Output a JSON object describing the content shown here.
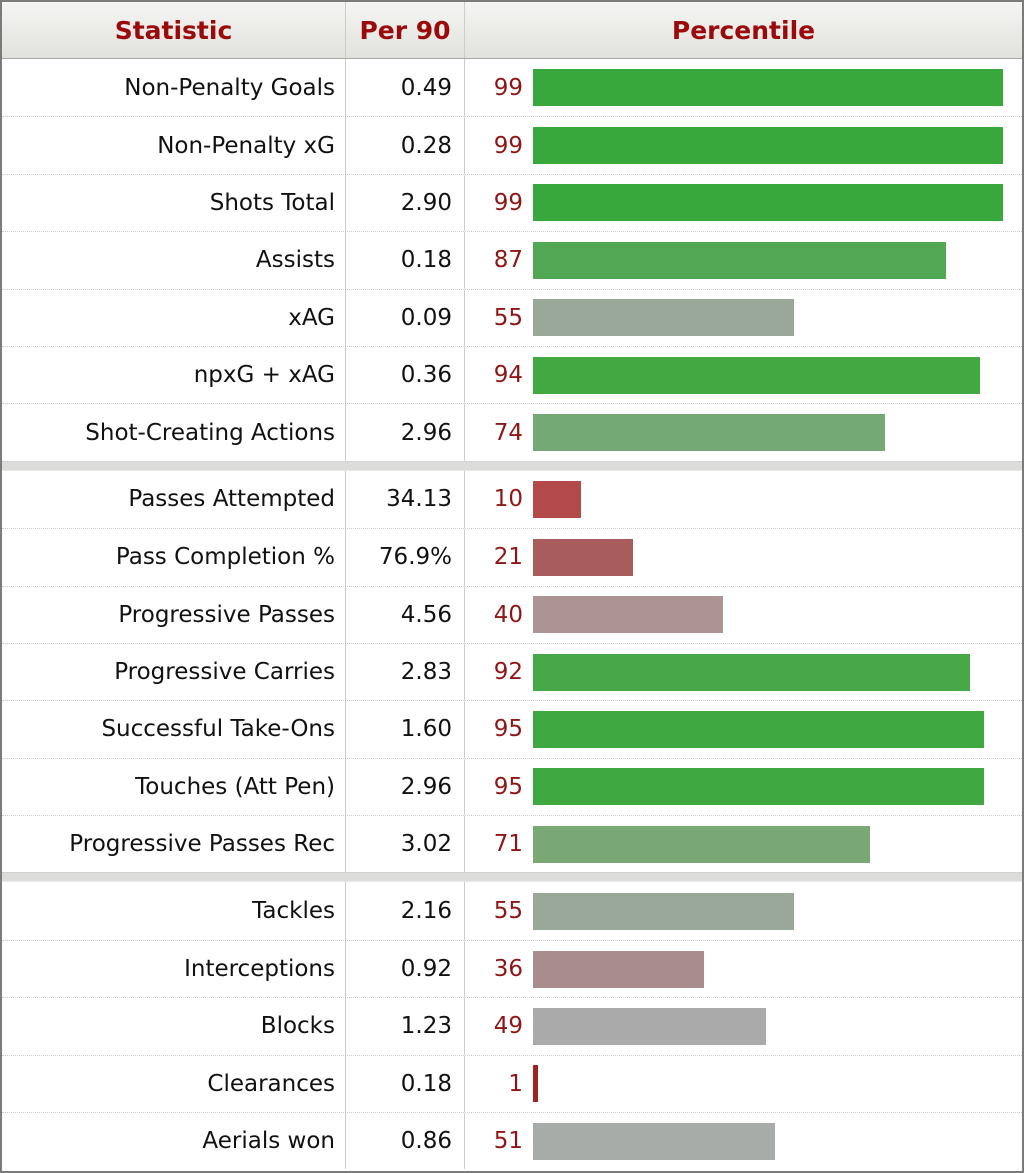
{
  "table": {
    "headers": [
      {
        "label": "Statistic"
      },
      {
        "label": "Per 90"
      },
      {
        "label": "Percentile"
      }
    ],
    "header_text_color": "#9b0a0a",
    "percentile_number_color": "#8f1616",
    "groups": [
      {
        "rows": [
          {
            "label": "Non-Penalty Goals",
            "per90": "0.49",
            "percentile": 99,
            "bar_color": "#38a83c"
          },
          {
            "label": "Non-Penalty xG",
            "per90": "0.28",
            "percentile": 99,
            "bar_color": "#38a83c"
          },
          {
            "label": "Shots Total",
            "per90": "2.90",
            "percentile": 99,
            "bar_color": "#38a83c"
          },
          {
            "label": "Assists",
            "per90": "0.18",
            "percentile": 87,
            "bar_color": "#52a852"
          },
          {
            "label": "xAG",
            "per90": "0.09",
            "percentile": 55,
            "bar_color": "#9aa89a"
          },
          {
            "label": "npxG + xAG",
            "per90": "0.36",
            "percentile": 94,
            "bar_color": "#42a842"
          },
          {
            "label": "Shot-Creating Actions",
            "per90": "2.96",
            "percentile": 74,
            "bar_color": "#74a874"
          }
        ]
      },
      {
        "rows": [
          {
            "label": "Passes Attempted",
            "per90": "34.13",
            "percentile": 10,
            "bar_color": "#b24a4a"
          },
          {
            "label": "Pass Completion %",
            "per90": "76.9%",
            "percentile": 21,
            "bar_color": "#a85c5c"
          },
          {
            "label": "Progressive Passes",
            "per90": "4.56",
            "percentile": 40,
            "bar_color": "#ad9494"
          },
          {
            "label": "Progressive Carries",
            "per90": "2.83",
            "percentile": 92,
            "bar_color": "#46a846"
          },
          {
            "label": "Successful Take-Ons",
            "per90": "1.60",
            "percentile": 95,
            "bar_color": "#40a840"
          },
          {
            "label": "Touches (Att Pen)",
            "per90": "2.96",
            "percentile": 95,
            "bar_color": "#40a840"
          },
          {
            "label": "Progressive Passes Rec",
            "per90": "3.02",
            "percentile": 71,
            "bar_color": "#7aa874"
          }
        ]
      },
      {
        "rows": [
          {
            "label": "Tackles",
            "per90": "2.16",
            "percentile": 55,
            "bar_color": "#9aa89a"
          },
          {
            "label": "Interceptions",
            "per90": "0.92",
            "percentile": 36,
            "bar_color": "#a98c8c"
          },
          {
            "label": "Blocks",
            "per90": "1.23",
            "percentile": 49,
            "bar_color": "#aaaaaa"
          },
          {
            "label": "Clearances",
            "per90": "0.18",
            "percentile": 1,
            "bar_color": "#9e2424"
          },
          {
            "label": "Aerials won",
            "per90": "0.86",
            "percentile": 51,
            "bar_color": "#a8aca8"
          }
        ]
      }
    ]
  },
  "chart_data": {
    "type": "bar",
    "orientation": "horizontal",
    "title": "",
    "columns": [
      "Statistic",
      "Per 90",
      "Percentile"
    ],
    "categories": [
      "Non-Penalty Goals",
      "Non-Penalty xG",
      "Shots Total",
      "Assists",
      "xAG",
      "npxG + xAG",
      "Shot-Creating Actions",
      "Passes Attempted",
      "Pass Completion %",
      "Progressive Passes",
      "Progressive Carries",
      "Successful Take-Ons",
      "Touches (Att Pen)",
      "Progressive Passes Rec",
      "Tackles",
      "Interceptions",
      "Blocks",
      "Clearances",
      "Aerials won"
    ],
    "series": [
      {
        "name": "Per 90",
        "values": [
          0.49,
          0.28,
          2.9,
          0.18,
          0.09,
          0.36,
          2.96,
          34.13,
          76.9,
          4.56,
          2.83,
          1.6,
          2.96,
          3.02,
          2.16,
          0.92,
          1.23,
          0.18,
          0.86
        ]
      },
      {
        "name": "Percentile",
        "values": [
          99,
          99,
          99,
          87,
          55,
          94,
          74,
          10,
          21,
          40,
          92,
          95,
          95,
          71,
          55,
          36,
          49,
          1,
          51
        ]
      }
    ],
    "xlim": [
      0,
      100
    ],
    "grid": false,
    "legend_position": "none",
    "notes": "Bar length encodes percentile 0-100; bar color blends red (low) through gray (50) to green (high). Rows are split into three stat groups by gray separator bands."
  }
}
